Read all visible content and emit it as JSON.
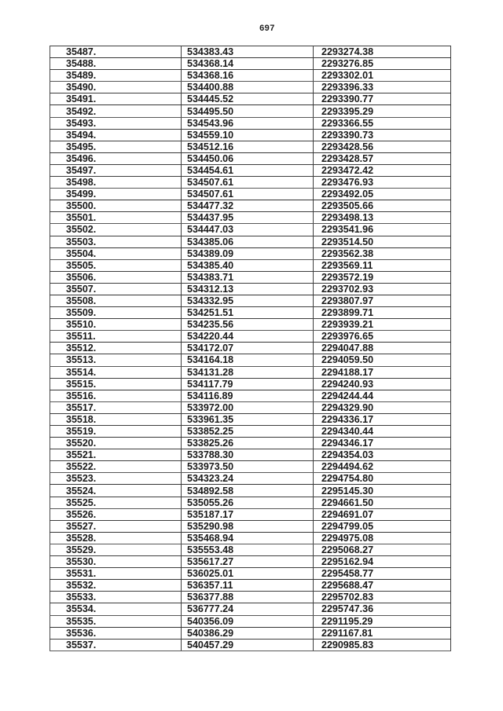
{
  "page": {
    "number": "697"
  },
  "table": {
    "rows": [
      [
        "35487.",
        "534383.43",
        "2293274.38"
      ],
      [
        "35488.",
        "534368.14",
        "2293276.85"
      ],
      [
        "35489.",
        "534368.16",
        "2293302.01"
      ],
      [
        "35490.",
        "534400.88",
        "2293396.33"
      ],
      [
        "35491.",
        "534445.52",
        "2293390.77"
      ],
      [
        "35492.",
        "534495.50",
        "2293395.29"
      ],
      [
        "35493.",
        "534543.96",
        "2293366.55"
      ],
      [
        "35494.",
        "534559.10",
        "2293390.73"
      ],
      [
        "35495.",
        "534512.16",
        "2293428.56"
      ],
      [
        "35496.",
        "534450.06",
        "2293428.57"
      ],
      [
        "35497.",
        "534454.61",
        "2293472.42"
      ],
      [
        "35498.",
        "534507.61",
        "2293476.93"
      ],
      [
        "35499.",
        "534507.61",
        "2293492.05"
      ],
      [
        "35500.",
        "534477.32",
        "2293505.66"
      ],
      [
        "35501.",
        "534437.95",
        "2293498.13"
      ],
      [
        "35502.",
        "534447.03",
        "2293541.96"
      ],
      [
        "35503.",
        "534385.06",
        "2293514.50"
      ],
      [
        "35504.",
        "534389.09",
        "2293562.38"
      ],
      [
        "35505.",
        "534385.40",
        "2293569.11"
      ],
      [
        "35506.",
        "534383.71",
        "2293572.19"
      ],
      [
        "35507.",
        "534312.13",
        "2293702.93"
      ],
      [
        "35508.",
        "534332.95",
        "2293807.97"
      ],
      [
        "35509.",
        "534251.51",
        "2293899.71"
      ],
      [
        "35510.",
        "534235.56",
        "2293939.21"
      ],
      [
        "35511.",
        "534220.44",
        "2293976.65"
      ],
      [
        "35512.",
        "534172.07",
        "2294047.88"
      ],
      [
        "35513.",
        "534164.18",
        "2294059.50"
      ],
      [
        "35514.",
        "534131.28",
        "2294188.17"
      ],
      [
        "35515.",
        "534117.79",
        "2294240.93"
      ],
      [
        "35516.",
        "534116.89",
        "2294244.44"
      ],
      [
        "35517.",
        "533972.00",
        "2294329.90"
      ],
      [
        "35518.",
        "533961.35",
        "2294336.17"
      ],
      [
        "35519.",
        "533852.25",
        "2294340.44"
      ],
      [
        "35520.",
        "533825.26",
        "2294346.17"
      ],
      [
        "35521.",
        "533788.30",
        "2294354.03"
      ],
      [
        "35522.",
        "533973.50",
        "2294494.62"
      ],
      [
        "35523.",
        "534323.24",
        "2294754.80"
      ],
      [
        "35524.",
        "534892.58",
        "2295145.30"
      ],
      [
        "35525.",
        "535055.26",
        "2294661.50"
      ],
      [
        "35526.",
        "535187.17",
        "2294691.07"
      ],
      [
        "35527.",
        "535290.98",
        "2294799.05"
      ],
      [
        "35528.",
        "535468.94",
        "2294975.08"
      ],
      [
        "35529.",
        "535553.48",
        "2295068.27"
      ],
      [
        "35530.",
        "535617.27",
        "2295162.94"
      ],
      [
        "35531.",
        "536025.01",
        "2295458.77"
      ],
      [
        "35532.",
        "536357.11",
        "2295688.47"
      ],
      [
        "35533.",
        "536377.88",
        "2295702.83"
      ],
      [
        "35534.",
        "536777.24",
        "2295747.36"
      ],
      [
        "35535.",
        "540356.09",
        "2291195.29"
      ],
      [
        "35536.",
        "540386.29",
        "2291167.81"
      ],
      [
        "35537.",
        "540457.29",
        "2290985.83"
      ]
    ]
  }
}
